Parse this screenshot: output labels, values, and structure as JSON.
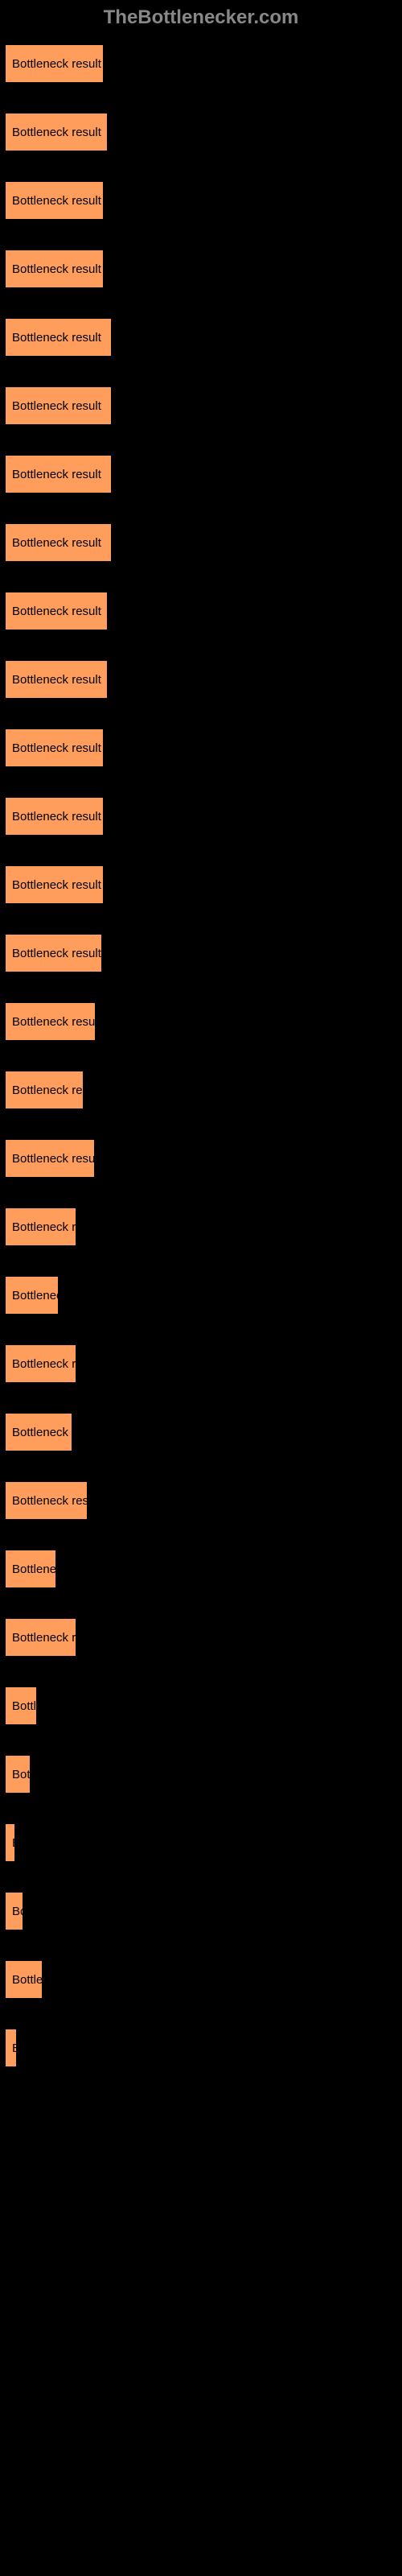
{
  "header": {
    "title": "TheBottlenecker.com"
  },
  "chart": {
    "type": "bar",
    "background_color": "#000000",
    "header_color": "#888888",
    "bar_color": "#ff9e5c",
    "bar_border_color": "#000000",
    "bar_text_color": "#000000",
    "max_width": 490,
    "bars": [
      {
        "label": "Bottleneck result",
        "width_pct": 25.5
      },
      {
        "label": "Bottleneck result",
        "width_pct": 26.5
      },
      {
        "label": "Bottleneck result",
        "width_pct": 25.5
      },
      {
        "label": "Bottleneck result",
        "width_pct": 25.5
      },
      {
        "label": "Bottleneck result",
        "width_pct": 27.5
      },
      {
        "label": "Bottleneck result",
        "width_pct": 27.5
      },
      {
        "label": "Bottleneck result",
        "width_pct": 27.5
      },
      {
        "label": "Bottleneck result",
        "width_pct": 27.5
      },
      {
        "label": "Bottleneck result",
        "width_pct": 26.5
      },
      {
        "label": "Bottleneck result",
        "width_pct": 26.5
      },
      {
        "label": "Bottleneck result",
        "width_pct": 25.5
      },
      {
        "label": "Bottleneck result",
        "width_pct": 25.5
      },
      {
        "label": "Bottleneck result",
        "width_pct": 25.5
      },
      {
        "label": "Bottleneck result",
        "width_pct": 25.0
      },
      {
        "label": "Bottleneck result",
        "width_pct": 23.5
      },
      {
        "label": "Bottleneck res",
        "width_pct": 20.5
      },
      {
        "label": "Bottleneck result",
        "width_pct": 23.2
      },
      {
        "label": "Bottleneck re",
        "width_pct": 18.5
      },
      {
        "label": "Bottlenec",
        "width_pct": 14.0
      },
      {
        "label": "Bottleneck re",
        "width_pct": 18.5
      },
      {
        "label": "Bottleneck r",
        "width_pct": 17.5
      },
      {
        "label": "Bottleneck resu",
        "width_pct": 21.5
      },
      {
        "label": "Bottlene",
        "width_pct": 13.5
      },
      {
        "label": "Bottleneck re",
        "width_pct": 18.5
      },
      {
        "label": "Bottl",
        "width_pct": 8.5
      },
      {
        "label": "Bot",
        "width_pct": 7.0
      },
      {
        "label": "B",
        "width_pct": 3.0
      },
      {
        "label": "Bo",
        "width_pct": 5.0
      },
      {
        "label": "Bottle",
        "width_pct": 10.0
      },
      {
        "label": "B",
        "width_pct": 3.5
      }
    ]
  }
}
